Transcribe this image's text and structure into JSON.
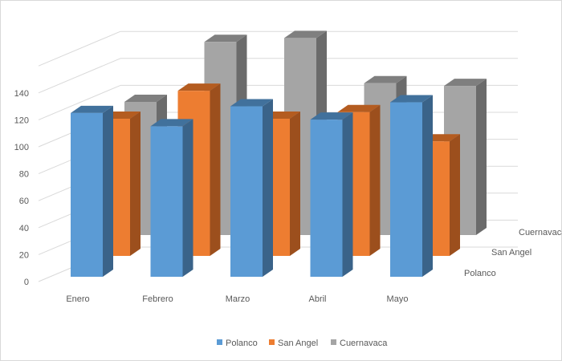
{
  "chart_data": {
    "type": "bar",
    "subtype": "3d-column",
    "title": "",
    "xlabel": "",
    "ylabel": "",
    "categories": [
      "Enero",
      "Febrero",
      "Marzo",
      "Abril",
      "Mayo"
    ],
    "series": [
      {
        "name": "Polanco",
        "values": [
          123,
          113,
          128,
          118,
          131
        ],
        "color": "#5b9bd5",
        "side": "#3a6389",
        "top": "#41719c"
      },
      {
        "name": "San Angel",
        "values": [
          103,
          124,
          103,
          108,
          86
        ],
        "color": "#ed7d31",
        "side": "#9c4f1d",
        "top": "#b45c20"
      },
      {
        "name": "Cuernavaca",
        "values": [
          100,
          145,
          148,
          114,
          112
        ],
        "color": "#a5a5a5",
        "side": "#6b6b6b",
        "top": "#7f7f7f"
      }
    ],
    "y_ticks": [
      "0",
      "20",
      "40",
      "60",
      "80",
      "100",
      "120",
      "140"
    ],
    "ylim": [
      0,
      160
    ],
    "grid": true,
    "legend": "bottom"
  }
}
